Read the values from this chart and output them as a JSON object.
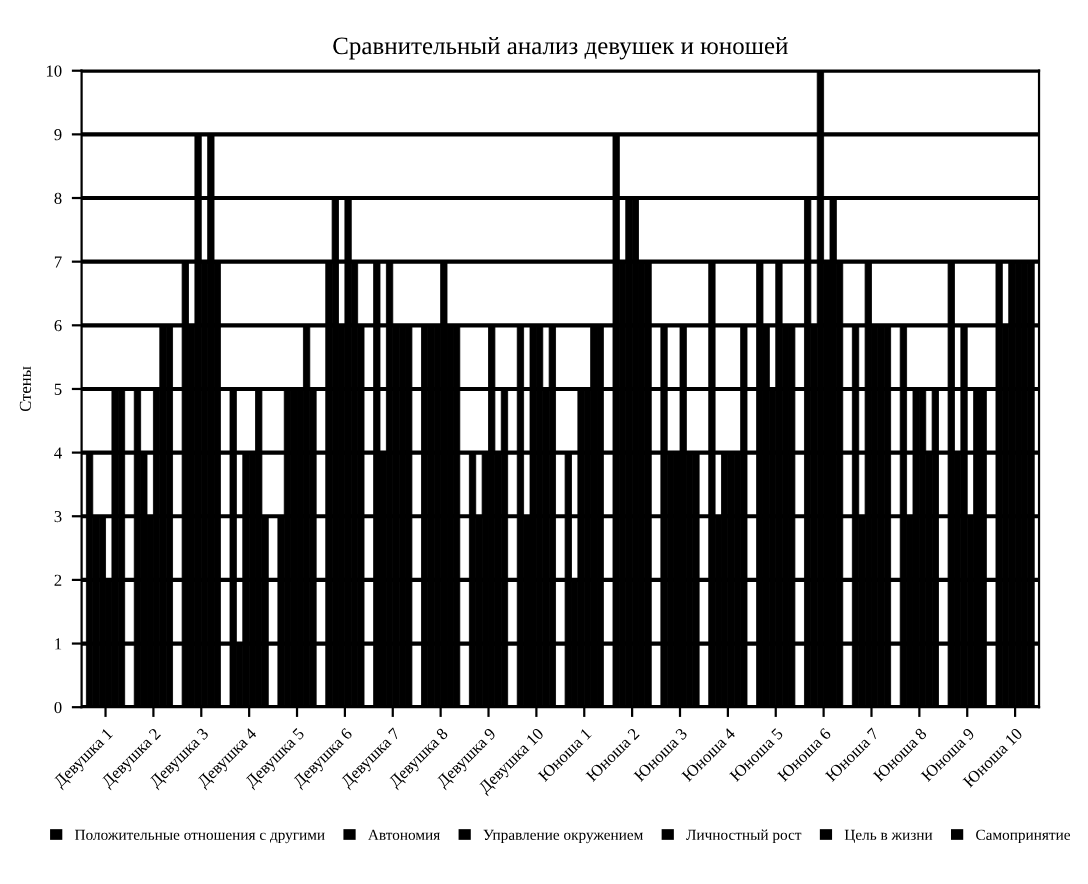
{
  "chart_data": {
    "type": "bar",
    "title": "Сравнительный анализ девушек и юношей",
    "ylabel": "Стены",
    "categories": [
      "Девушка 1",
      "Девушка 2",
      "Девушка 3",
      "Девушка 4",
      "Девушка 5",
      "Девушка 6",
      "Девушка 7",
      "Девушка 8",
      "Девушка 9",
      "Девушка 10",
      "Юноша 1",
      "Юноша 2",
      "Юноша 3",
      "Юноша 4",
      "Юноша 5",
      "Юноша 6",
      "Юноша 7",
      "Юноша 8",
      "Юноша 9",
      "Юноша 10"
    ],
    "series": [
      {
        "name": "Положительные отношения с другими",
        "color": "#000000",
        "values": [
          4,
          5,
          7,
          5,
          3,
          7,
          7,
          6,
          4,
          6,
          4,
          9,
          6,
          7,
          7,
          8,
          6,
          6,
          7,
          7
        ]
      },
      {
        "name": "Автономия",
        "color": "#000000",
        "values": [
          3,
          4,
          6,
          1,
          5,
          8,
          4,
          6,
          3,
          3,
          2,
          7,
          4,
          3,
          6,
          6,
          3,
          3,
          4,
          6
        ]
      },
      {
        "name": "Управление окружением",
        "color": "#000000",
        "values": [
          3,
          3,
          9,
          4,
          5,
          6,
          7,
          6,
          4,
          6,
          5,
          8,
          4,
          4,
          5,
          10,
          7,
          5,
          6,
          7
        ]
      },
      {
        "name": "Личностный рост",
        "color": "#000000",
        "values": [
          2,
          5,
          7,
          4,
          5,
          8,
          6,
          7,
          6,
          6,
          5,
          8,
          6,
          4,
          7,
          7,
          6,
          5,
          3,
          7
        ]
      },
      {
        "name": "Цель в жизни",
        "color": "#000000",
        "values": [
          5,
          6,
          9,
          5,
          6,
          7,
          6,
          6,
          4,
          5,
          6,
          7,
          4,
          4,
          6,
          8,
          6,
          4,
          5,
          7
        ]
      },
      {
        "name": "Самопринятие",
        "color": "#000000",
        "values": [
          5,
          6,
          7,
          3,
          5,
          6,
          6,
          6,
          5,
          6,
          6,
          7,
          4,
          6,
          6,
          7,
          6,
          5,
          5,
          7
        ]
      }
    ],
    "ylim": [
      0,
      10
    ],
    "yticks": [
      0,
      1,
      2,
      3,
      4,
      5,
      6,
      7,
      8,
      9,
      10
    ],
    "grid": "y",
    "legend": "bottom"
  }
}
